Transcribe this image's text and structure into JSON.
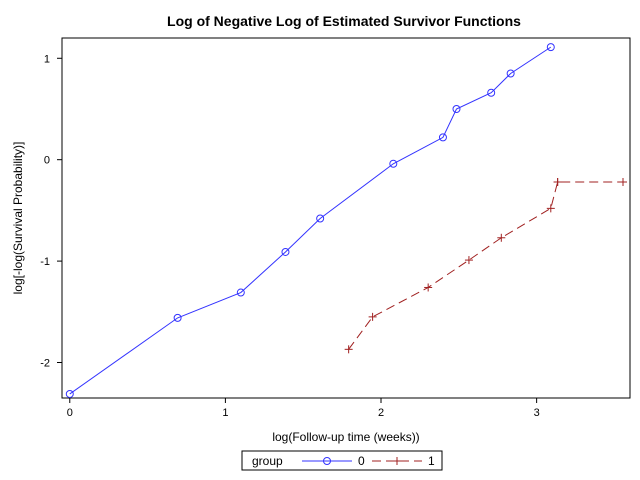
{
  "chart_data": {
    "type": "line",
    "title": "Log of Negative Log of Estimated Survivor Functions",
    "xlabel": "log(Follow-up time (weeks))",
    "ylabel": "log[-log(Survival Probability)]",
    "xlim": [
      -0.05,
      3.6
    ],
    "ylim": [
      -2.35,
      1.2
    ],
    "x_ticks": [
      0,
      1,
      2,
      3
    ],
    "y_ticks": [
      -2,
      -1,
      0,
      1
    ],
    "grid": false,
    "legend": {
      "title": "group",
      "placement": "bottom"
    },
    "series": [
      {
        "name": "0",
        "color": "#3333ff",
        "marker": "circle",
        "line_style": "solid",
        "step_tail": false,
        "points": [
          [
            0.0,
            -2.31
          ],
          [
            0.693,
            -1.56
          ],
          [
            1.099,
            -1.31
          ],
          [
            1.386,
            -0.91
          ],
          [
            1.609,
            -0.58
          ],
          [
            2.079,
            -0.04
          ],
          [
            2.398,
            0.22
          ],
          [
            2.485,
            0.5
          ],
          [
            2.708,
            0.66
          ],
          [
            2.833,
            0.85
          ],
          [
            3.091,
            1.11
          ]
        ]
      },
      {
        "name": "1",
        "color": "#a02020",
        "marker": "plus",
        "line_style": "dashed",
        "step_tail": true,
        "points": [
          [
            1.792,
            -1.87
          ],
          [
            1.946,
            -1.55
          ],
          [
            2.303,
            -1.26
          ],
          [
            2.565,
            -0.99
          ],
          [
            2.773,
            -0.77
          ],
          [
            3.091,
            -0.48
          ],
          [
            3.135,
            -0.22
          ],
          [
            3.555,
            -0.22
          ]
        ]
      }
    ]
  }
}
